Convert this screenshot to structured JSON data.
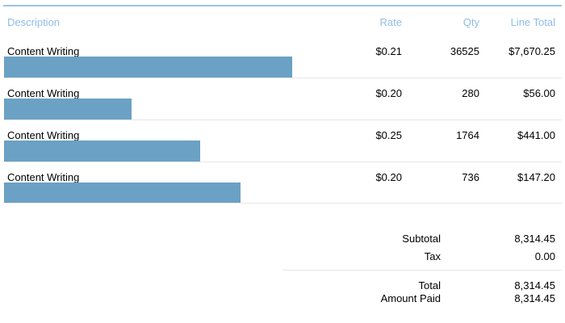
{
  "header": {
    "description": "Description",
    "rate": "Rate",
    "qty": "Qty",
    "line_total": "Line Total"
  },
  "items": [
    {
      "description": "Content Writing",
      "rate": "$0.21",
      "qty": "36525",
      "line_total": "$7,670.25"
    },
    {
      "description": "Content Writing",
      "rate": "$0.20",
      "qty": "280",
      "line_total": "$56.00"
    },
    {
      "description": "Content Writing",
      "rate": "$0.25",
      "qty": "1764",
      "line_total": "$441.00"
    },
    {
      "description": "Content Writing",
      "rate": "$0.20",
      "qty": "736",
      "line_total": "$147.20"
    }
  ],
  "summary": {
    "subtotal_label": "Subtotal",
    "subtotal_value": "8,314.45",
    "tax_label": "Tax",
    "tax_value": "0.00",
    "total_label": "Total",
    "total_value": "8,314.45",
    "amount_paid_label": "Amount Paid",
    "amount_paid_value": "8,314.45"
  },
  "colors": {
    "header_text": "#8fbde8",
    "header_rule": "#9cc3e6",
    "redaction_bar": "#6aa1c4",
    "row_separator": "#e6e6e6"
  }
}
